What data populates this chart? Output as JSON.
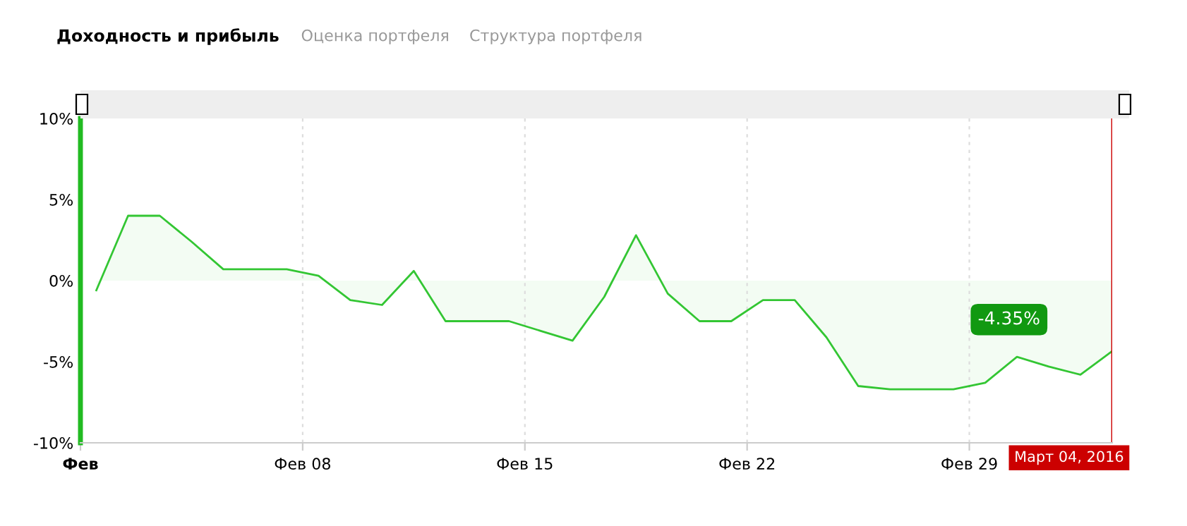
{
  "chart_data": {
    "type": "area",
    "title": "Доходность и прибыль",
    "annotations": [
      "Оценка портфеля",
      "Структура портфеля",
      "-4.35%"
    ],
    "x": [
      "2016-02-01T12:00",
      "2016-02-02T12:00",
      "2016-02-03T12:00",
      "2016-02-04T12:00",
      "2016-02-05T12:00",
      "2016-02-06T12:00",
      "2016-02-07T12:00",
      "2016-02-08T12:00",
      "2016-02-09T12:00",
      "2016-02-10T12:00",
      "2016-02-11T12:00",
      "2016-02-12T12:00",
      "2016-02-13T12:00",
      "2016-02-14T12:00",
      "2016-02-15T12:00",
      "2016-02-16T12:00",
      "2016-02-17T12:00",
      "2016-02-18T12:00",
      "2016-02-19T12:00",
      "2016-02-20T12:00",
      "2016-02-21T12:00",
      "2016-02-22T12:00",
      "2016-02-23T12:00",
      "2016-02-24T12:00",
      "2016-02-25T12:00",
      "2016-02-26T12:00",
      "2016-02-27T12:00",
      "2016-02-28T12:00",
      "2016-02-29T12:00",
      "2016-03-01T12:00",
      "2016-03-02T12:00",
      "2016-03-03T12:00",
      "2016-03-04T12:00"
    ],
    "series": [
      {
        "color": "#33c633",
        "values": [
          -0.6,
          4.0,
          4.0,
          2.4,
          0.7,
          0.7,
          0.7,
          0.3,
          -1.2,
          -1.5,
          0.6,
          -2.5,
          -2.5,
          -2.5,
          -3.1,
          -3.7,
          -1.0,
          2.8,
          -0.8,
          -2.5,
          -2.5,
          -1.2,
          -1.2,
          -3.5,
          -6.5,
          -6.7,
          -6.7,
          -6.7,
          -6.3,
          -4.7,
          -5.3,
          -5.8,
          -4.35
        ]
      }
    ],
    "xlim": [
      "2016-02-01T00:00",
      "2016-03-04T12:00"
    ],
    "xticks": [
      {
        "value": "2016-02-01",
        "label": "Фев"
      },
      {
        "value": "2016-02-08",
        "label": "Фев 08"
      },
      {
        "value": "2016-02-15",
        "label": "Фев 15"
      },
      {
        "value": "2016-02-22",
        "label": "Фев 22"
      },
      {
        "value": "2016-02-29",
        "label": "Фев 29"
      }
    ],
    "ylim": [
      -10,
      10
    ],
    "yticks": [
      {
        "value": -10,
        "label": "-10%"
      },
      {
        "value": -5,
        "label": "-5%"
      },
      {
        "value": 0,
        "label": "0%"
      },
      {
        "value": 5,
        "label": "5%"
      },
      {
        "value": 10,
        "label": "10%"
      }
    ],
    "ref_lines": [
      {
        "axis": "x",
        "value": "2016-03-04T12:00",
        "label": "Март 04, 2016",
        "color": "#cc0000"
      }
    ],
    "grid": "x",
    "legend": false,
    "marker": "none",
    "line_style": "solid"
  }
}
